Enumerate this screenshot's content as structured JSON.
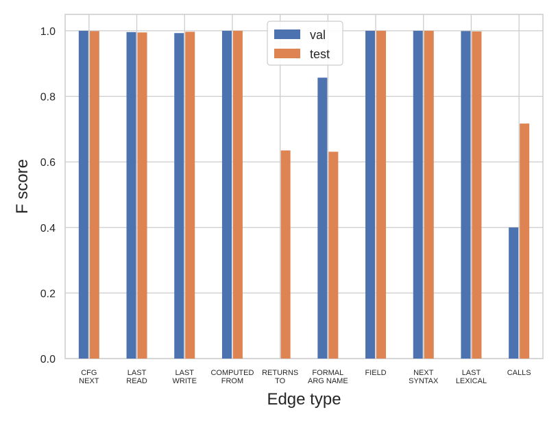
{
  "chart_data": {
    "type": "bar",
    "title": "",
    "xlabel": "Edge type",
    "ylabel": "F score",
    "ylim": [
      0,
      1.05
    ],
    "yticks": [
      "0.0",
      "0.2",
      "0.4",
      "0.6",
      "0.8",
      "1.0"
    ],
    "ytick_values": [
      0,
      0.2,
      0.4,
      0.6,
      0.8,
      1.0
    ],
    "grid": true,
    "legend_position": "top-center",
    "categories": [
      [
        "CFG",
        "NEXT"
      ],
      [
        "LAST",
        "READ"
      ],
      [
        "LAST",
        "WRITE"
      ],
      [
        "COMPUTED",
        "FROM"
      ],
      [
        "RETURNS",
        "TO"
      ],
      [
        "FORMAL",
        "ARG NAME"
      ],
      [
        "FIELD"
      ],
      [
        "NEXT",
        "SYNTAX"
      ],
      [
        "LAST",
        "LEXICAL"
      ],
      [
        "CALLS"
      ]
    ],
    "series": [
      {
        "name": "val",
        "color": "#4c72b0",
        "values": [
          1.0,
          0.996,
          0.993,
          1.0,
          0.0,
          0.857,
          1.0,
          1.0,
          0.999,
          0.4
        ]
      },
      {
        "name": "test",
        "color": "#dd8452",
        "values": [
          0.999,
          0.995,
          0.997,
          1.0,
          0.635,
          0.631,
          1.0,
          1.0,
          0.998,
          0.717
        ]
      }
    ]
  }
}
